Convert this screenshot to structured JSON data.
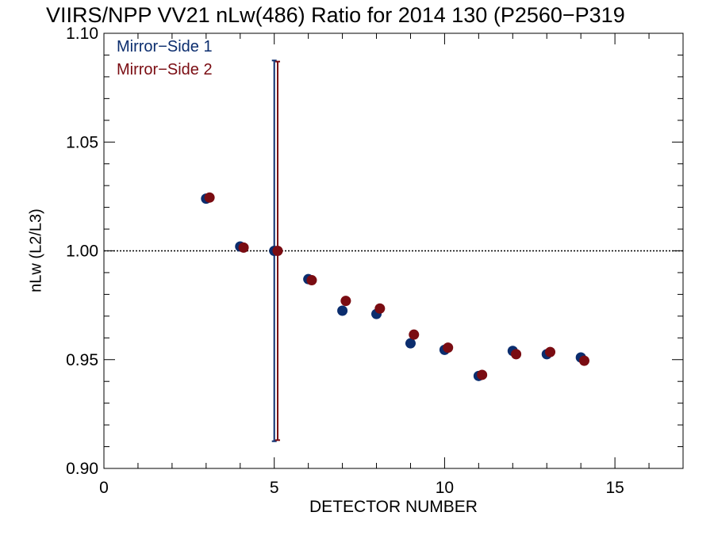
{
  "chart_data": {
    "type": "scatter",
    "title": "VIIRS/NPP VV21 nLw(486) Ratio for 2014 130 (P2560−P319",
    "xlabel": "DETECTOR NUMBER",
    "ylabel": "nLw (L2/L3)",
    "xlim": [
      0,
      17
    ],
    "ylim": [
      0.9,
      1.1
    ],
    "x_ticks": [
      0,
      5,
      10,
      15
    ],
    "x_tick_labels": [
      "0",
      "5",
      "10",
      "15"
    ],
    "y_ticks": [
      0.9,
      0.95,
      1.0,
      1.05,
      1.1
    ],
    "y_tick_labels": [
      "0.90",
      "0.95",
      "1.00",
      "1.05",
      "1.10"
    ],
    "reference_line": 1.0,
    "grid": false,
    "legend_position": "top-left",
    "series": [
      {
        "name": "Mirror−Side 1",
        "color": "#0b2d6e",
        "x": [
          3,
          4,
          5,
          6,
          7,
          8,
          9,
          10,
          11,
          12,
          13,
          14
        ],
        "y": [
          1.024,
          1.002,
          1.0,
          0.987,
          0.9725,
          0.971,
          0.9575,
          0.9545,
          0.9425,
          0.954,
          0.9525,
          0.951
        ],
        "error_bar": {
          "x": 5,
          "low": 0.9125,
          "high": 1.0875
        }
      },
      {
        "name": "Mirror−Side 2",
        "color": "#7a0c12",
        "x": [
          3.1,
          4.1,
          5.1,
          6.1,
          7.1,
          8.1,
          9.1,
          10.1,
          11.1,
          12.1,
          13.1,
          14.1
        ],
        "y": [
          1.0245,
          1.0015,
          1.0,
          0.9865,
          0.977,
          0.9735,
          0.9615,
          0.9555,
          0.943,
          0.9525,
          0.9535,
          0.9495
        ],
        "error_bar": {
          "x": 5.1,
          "low": 0.913,
          "high": 1.087
        }
      }
    ]
  }
}
